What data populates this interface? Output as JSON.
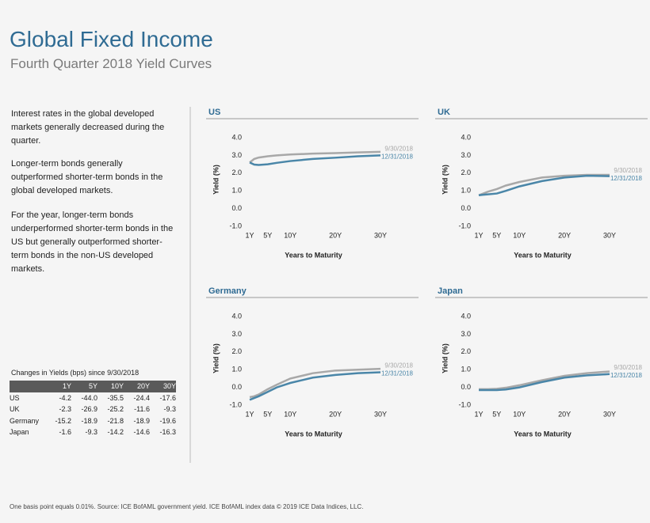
{
  "header": {
    "title": "Global Fixed Income",
    "subtitle": "Fourth Quarter 2018 Yield Curves"
  },
  "body": {
    "paragraphs": [
      "Interest rates in the global developed markets generally decreased during the quarter.",
      "Longer-term bonds generally outperformed shorter-term bonds in the global developed markets.",
      "For the year, longer-term bonds underperformed shorter-term bonds in the US but generally outperformed shorter-term bonds in the non-US developed markets."
    ]
  },
  "table": {
    "caption": "Changes in Yields (bps) since 9/30/2018",
    "columns": [
      "1Y",
      "5Y",
      "10Y",
      "20Y",
      "30Y"
    ],
    "rows": [
      {
        "label": "US",
        "values": [
          "-4.2",
          "-44.0",
          "-35.5",
          "-24.4",
          "-17.6"
        ]
      },
      {
        "label": "UK",
        "values": [
          "-2.3",
          "-26.9",
          "-25.2",
          "-11.6",
          "-9.3"
        ]
      },
      {
        "label": "Germany",
        "values": [
          "-15.2",
          "-18.9",
          "-21.8",
          "-18.9",
          "-19.6"
        ]
      },
      {
        "label": "Japan",
        "values": [
          "-1.6",
          "-9.3",
          "-14.2",
          "-14.6",
          "-16.3"
        ]
      }
    ]
  },
  "chart_data": [
    {
      "type": "line",
      "title": "US",
      "xlabel": "Years to Maturity",
      "ylabel": "Yield (%)",
      "x": [
        1,
        2,
        3,
        5,
        7,
        10,
        15,
        20,
        25,
        30
      ],
      "xlim": [
        1,
        30
      ],
      "xticks": [
        {
          "value": 1,
          "label": "1Y"
        },
        {
          "value": 5,
          "label": "5Y"
        },
        {
          "value": 10,
          "label": "10Y"
        },
        {
          "value": 20,
          "label": "20Y"
        },
        {
          "value": 30,
          "label": "30Y"
        }
      ],
      "ylim": [
        -1,
        4
      ],
      "yticks": [
        {
          "value": -1,
          "label": "-1.0"
        },
        {
          "value": 0,
          "label": "0.0"
        },
        {
          "value": 1,
          "label": "1.0"
        },
        {
          "value": 2,
          "label": "2.0"
        },
        {
          "value": 3,
          "label": "3.0"
        },
        {
          "value": 4,
          "label": "4.0"
        }
      ],
      "series": [
        {
          "name": "9/30/2018",
          "color": "#a8a8a8",
          "values": [
            2.6,
            2.8,
            2.88,
            2.95,
            3.0,
            3.05,
            3.1,
            3.13,
            3.17,
            3.2
          ]
        },
        {
          "name": "12/31/2018",
          "color": "#4a86a8",
          "values": [
            2.6,
            2.48,
            2.46,
            2.5,
            2.58,
            2.68,
            2.8,
            2.87,
            2.95,
            3.0
          ]
        }
      ]
    },
    {
      "type": "line",
      "title": "UK",
      "xlabel": "Years to Maturity",
      "ylabel": "Yield (%)",
      "x": [
        1,
        2,
        3,
        5,
        7,
        10,
        15,
        20,
        25,
        30
      ],
      "xlim": [
        1,
        30
      ],
      "xticks": [
        {
          "value": 1,
          "label": "1Y"
        },
        {
          "value": 5,
          "label": "5Y"
        },
        {
          "value": 10,
          "label": "10Y"
        },
        {
          "value": 20,
          "label": "20Y"
        },
        {
          "value": 30,
          "label": "30Y"
        }
      ],
      "ylim": [
        -1,
        4
      ],
      "yticks": [
        {
          "value": -1,
          "label": "-1.0"
        },
        {
          "value": 0,
          "label": "0.0"
        },
        {
          "value": 1,
          "label": "1.0"
        },
        {
          "value": 2,
          "label": "2.0"
        },
        {
          "value": 3,
          "label": "3.0"
        },
        {
          "value": 4,
          "label": "4.0"
        }
      ],
      "series": [
        {
          "name": "9/30/2018",
          "color": "#a8a8a8",
          "values": [
            0.75,
            0.85,
            0.95,
            1.1,
            1.3,
            1.5,
            1.75,
            1.85,
            1.9,
            1.9
          ]
        },
        {
          "name": "12/31/2018",
          "color": "#4a86a8",
          "values": [
            0.75,
            0.78,
            0.8,
            0.85,
            1.0,
            1.25,
            1.55,
            1.75,
            1.85,
            1.83
          ]
        }
      ]
    },
    {
      "type": "line",
      "title": "Germany",
      "xlabel": "Years to Maturity",
      "ylabel": "Yield (%)",
      "x": [
        1,
        2,
        3,
        5,
        7,
        10,
        15,
        20,
        25,
        30
      ],
      "xlim": [
        1,
        30
      ],
      "xticks": [
        {
          "value": 1,
          "label": "1Y"
        },
        {
          "value": 5,
          "label": "5Y"
        },
        {
          "value": 10,
          "label": "10Y"
        },
        {
          "value": 20,
          "label": "20Y"
        },
        {
          "value": 30,
          "label": "30Y"
        }
      ],
      "ylim": [
        -1,
        4
      ],
      "yticks": [
        {
          "value": -1,
          "label": "-1.0"
        },
        {
          "value": 0,
          "label": "0.0"
        },
        {
          "value": 1,
          "label": "1.0"
        },
        {
          "value": 2,
          "label": "2.0"
        },
        {
          "value": 3,
          "label": "3.0"
        },
        {
          "value": 4,
          "label": "4.0"
        }
      ],
      "series": [
        {
          "name": "9/30/2018",
          "color": "#a8a8a8",
          "values": [
            -0.55,
            -0.5,
            -0.4,
            -0.1,
            0.15,
            0.5,
            0.8,
            0.95,
            1.0,
            1.05
          ]
        },
        {
          "name": "12/31/2018",
          "color": "#4a86a8",
          "values": [
            -0.7,
            -0.6,
            -0.5,
            -0.25,
            0.0,
            0.25,
            0.55,
            0.7,
            0.8,
            0.85
          ]
        }
      ]
    },
    {
      "type": "line",
      "title": "Japan",
      "xlabel": "Years to Maturity",
      "ylabel": "Yield (%)",
      "x": [
        1,
        2,
        3,
        5,
        7,
        10,
        15,
        20,
        25,
        30
      ],
      "xlim": [
        1,
        30
      ],
      "xticks": [
        {
          "value": 1,
          "label": "1Y"
        },
        {
          "value": 5,
          "label": "5Y"
        },
        {
          "value": 10,
          "label": "10Y"
        },
        {
          "value": 20,
          "label": "20Y"
        },
        {
          "value": 30,
          "label": "30Y"
        }
      ],
      "ylim": [
        -1,
        4
      ],
      "yticks": [
        {
          "value": -1,
          "label": "-1.0"
        },
        {
          "value": 0,
          "label": "0.0"
        },
        {
          "value": 1,
          "label": "1.0"
        },
        {
          "value": 2,
          "label": "2.0"
        },
        {
          "value": 3,
          "label": "3.0"
        },
        {
          "value": 4,
          "label": "4.0"
        }
      ],
      "series": [
        {
          "name": "9/30/2018",
          "color": "#a8a8a8",
          "values": [
            -0.1,
            -0.1,
            -0.1,
            -0.08,
            -0.02,
            0.12,
            0.4,
            0.65,
            0.8,
            0.9
          ]
        },
        {
          "name": "12/31/2018",
          "color": "#4a86a8",
          "values": [
            -0.15,
            -0.15,
            -0.15,
            -0.15,
            -0.12,
            0.0,
            0.3,
            0.55,
            0.68,
            0.75
          ]
        }
      ]
    }
  ],
  "footnote": "One basis point equals 0.01%. Source: ICE BofAML government yield. ICE BofAML index data © 2019 ICE Data Indices, LLC."
}
